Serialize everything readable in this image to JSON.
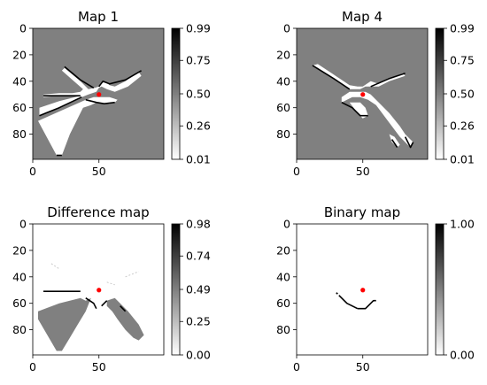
{
  "chart_data": [
    {
      "type": "heatmap",
      "title": "Map 1",
      "xlim": [
        0,
        99
      ],
      "ylim": [
        0,
        99
      ],
      "y_inverted": true,
      "xticks": [
        0,
        50
      ],
      "yticks": [
        0,
        20,
        40,
        60,
        80
      ],
      "colormap": "greys",
      "colorbar": {
        "ticks": [
          "0.99",
          "0.75",
          "0.50",
          "0.26",
          "0.01"
        ],
        "min": 0.01,
        "max": 0.99
      },
      "background_value": 0.5,
      "marker": {
        "x": 50,
        "y": 50,
        "color": "#ff0000"
      },
      "free_regions": [
        [
          [
            5,
            66
          ],
          [
            20,
            60
          ],
          [
            37,
            52
          ],
          [
            42,
            50
          ],
          [
            48,
            48
          ],
          [
            50,
            45
          ],
          [
            52,
            44
          ],
          [
            56,
            46
          ],
          [
            62,
            48
          ],
          [
            72,
            44
          ],
          [
            82,
            36
          ],
          [
            80,
            33
          ],
          [
            70,
            40
          ],
          [
            62,
            44
          ],
          [
            58,
            43
          ],
          [
            56,
            41
          ],
          [
            53,
            41
          ],
          [
            50,
            44
          ],
          [
            47,
            45
          ],
          [
            42,
            46
          ],
          [
            36,
            40
          ],
          [
            24,
            30
          ],
          [
            22,
            32
          ],
          [
            30,
            39
          ],
          [
            38,
            46
          ],
          [
            36,
            48
          ],
          [
            30,
            49
          ],
          [
            20,
            49
          ],
          [
            8,
            50
          ],
          [
            8,
            52
          ],
          [
            20,
            51
          ],
          [
            30,
            51
          ],
          [
            36,
            51
          ],
          [
            20,
            55
          ],
          [
            5,
            60
          ]
        ],
        [
          [
            4,
            70
          ],
          [
            18,
            96
          ],
          [
            22,
            96
          ],
          [
            28,
            80
          ],
          [
            34,
            68
          ],
          [
            38,
            60
          ],
          [
            44,
            58
          ],
          [
            48,
            56
          ],
          [
            54,
            57
          ],
          [
            58,
            57
          ],
          [
            62,
            56
          ],
          [
            64,
            54
          ],
          [
            58,
            52
          ],
          [
            52,
            52
          ],
          [
            46,
            52
          ],
          [
            40,
            54
          ]
        ]
      ],
      "occupied_lines": [
        [
          [
            24,
            29
          ],
          [
            36,
            39
          ],
          [
            46,
            45
          ]
        ],
        [
          [
            50,
            44
          ],
          [
            53,
            40
          ],
          [
            58,
            42
          ],
          [
            70,
            39
          ],
          [
            82,
            32
          ]
        ],
        [
          [
            8,
            51
          ],
          [
            36,
            51
          ]
        ],
        [
          [
            40,
            54
          ],
          [
            48,
            56
          ],
          [
            54,
            57
          ],
          [
            62,
            56
          ]
        ],
        [
          [
            5,
            66
          ],
          [
            20,
            60
          ],
          [
            37,
            52
          ]
        ],
        [
          [
            18,
            96
          ],
          [
            22,
            96
          ]
        ]
      ]
    },
    {
      "type": "heatmap",
      "title": "Map 4",
      "xlim": [
        0,
        99
      ],
      "ylim": [
        0,
        99
      ],
      "y_inverted": true,
      "xticks": [
        0,
        50
      ],
      "yticks": [
        0,
        20,
        40,
        60,
        80
      ],
      "colormap": "greys",
      "colorbar": {
        "ticks": [
          "0.99",
          "0.75",
          "0.50",
          "0.26",
          "0.01"
        ],
        "min": 0.01,
        "max": 0.99
      },
      "background_value": 0.5,
      "marker": {
        "x": 50,
        "y": 50,
        "color": "#ff0000"
      },
      "free_regions": [
        [
          [
            12,
            28
          ],
          [
            16,
            30
          ],
          [
            28,
            38
          ],
          [
            40,
            46
          ],
          [
            48,
            46
          ],
          [
            52,
            44
          ],
          [
            56,
            44
          ],
          [
            62,
            44
          ],
          [
            70,
            40
          ],
          [
            82,
            36
          ],
          [
            80,
            34
          ],
          [
            70,
            38
          ],
          [
            62,
            42
          ],
          [
            56,
            40
          ],
          [
            50,
            44
          ],
          [
            46,
            44
          ],
          [
            40,
            43
          ],
          [
            28,
            35
          ],
          [
            16,
            27
          ]
        ],
        [
          [
            34,
            56
          ],
          [
            42,
            52
          ],
          [
            48,
            52
          ],
          [
            54,
            54
          ],
          [
            60,
            58
          ],
          [
            66,
            66
          ],
          [
            72,
            74
          ],
          [
            78,
            82
          ],
          [
            84,
            88
          ],
          [
            86,
            90
          ],
          [
            88,
            86
          ],
          [
            82,
            80
          ],
          [
            78,
            74
          ],
          [
            70,
            64
          ],
          [
            62,
            56
          ],
          [
            58,
            52
          ],
          [
            56,
            50
          ],
          [
            52,
            48
          ],
          [
            46,
            48
          ],
          [
            40,
            48
          ],
          [
            34,
            52
          ]
        ],
        [
          [
            40,
            56
          ],
          [
            46,
            64
          ],
          [
            50,
            68
          ],
          [
            54,
            66
          ],
          [
            52,
            60
          ],
          [
            48,
            56
          ]
        ],
        [
          [
            70,
            80
          ],
          [
            72,
            86
          ],
          [
            76,
            90
          ],
          [
            78,
            88
          ],
          [
            74,
            82
          ]
        ]
      ],
      "occupied_lines": [
        [
          [
            12,
            28
          ],
          [
            28,
            38
          ],
          [
            40,
            46
          ]
        ],
        [
          [
            34,
            56
          ],
          [
            42,
            60
          ],
          [
            48,
            66
          ],
          [
            54,
            66
          ]
        ],
        [
          [
            56,
            44
          ],
          [
            70,
            38
          ],
          [
            82,
            34
          ]
        ],
        [
          [
            72,
            84
          ],
          [
            76,
            90
          ]
        ],
        [
          [
            82,
            82
          ],
          [
            86,
            90
          ],
          [
            88,
            86
          ]
        ]
      ]
    },
    {
      "type": "heatmap",
      "title": "Difference map",
      "xlim": [
        0,
        99
      ],
      "ylim": [
        0,
        99
      ],
      "y_inverted": true,
      "xticks": [
        0,
        50
      ],
      "yticks": [
        0,
        20,
        40,
        60,
        80
      ],
      "colormap": "greys",
      "colorbar": {
        "ticks": [
          "0.98",
          "0.74",
          "0.49",
          "0.25",
          "0.00"
        ],
        "min": 0.0,
        "max": 0.98
      },
      "background_value": 0.0,
      "marker": {
        "x": 50,
        "y": 50,
        "color": "#ff0000"
      },
      "grey_regions": [
        [
          [
            4,
            66
          ],
          [
            20,
            60
          ],
          [
            36,
            56
          ],
          [
            40,
            58
          ],
          [
            44,
            56
          ],
          [
            40,
            66
          ],
          [
            34,
            76
          ],
          [
            28,
            86
          ],
          [
            22,
            96
          ],
          [
            18,
            96
          ],
          [
            4,
            72
          ]
        ],
        [
          [
            56,
            58
          ],
          [
            62,
            56
          ],
          [
            66,
            60
          ],
          [
            72,
            66
          ],
          [
            80,
            76
          ],
          [
            84,
            84
          ],
          [
            80,
            88
          ],
          [
            76,
            86
          ],
          [
            70,
            80
          ],
          [
            64,
            72
          ],
          [
            60,
            66
          ],
          [
            56,
            62
          ]
        ]
      ],
      "occupied_lines": [
        [
          [
            8,
            51
          ],
          [
            36,
            51
          ]
        ],
        [
          [
            40,
            56
          ],
          [
            46,
            60
          ],
          [
            48,
            64
          ]
        ],
        [
          [
            52,
            62
          ],
          [
            56,
            58
          ]
        ],
        [
          [
            66,
            62
          ],
          [
            70,
            66
          ]
        ]
      ],
      "light_lines": [
        [
          [
            14,
            30
          ],
          [
            20,
            34
          ]
        ],
        [
          [
            70,
            40
          ],
          [
            80,
            36
          ]
        ],
        [
          [
            56,
            44
          ],
          [
            62,
            46
          ]
        ]
      ]
    },
    {
      "type": "heatmap",
      "title": "Binary map",
      "xlim": [
        0,
        99
      ],
      "ylim": [
        0,
        99
      ],
      "y_inverted": true,
      "xticks": [
        0,
        50
      ],
      "yticks": [
        0,
        20,
        40,
        60,
        80
      ],
      "colormap": "greys",
      "colorbar": {
        "ticks": [
          "1.00",
          "0.00"
        ],
        "min": 0.0,
        "max": 1.0
      },
      "background_value": 0.0,
      "marker": {
        "x": 50,
        "y": 50,
        "color": "#ff0000"
      },
      "occupied_lines": [
        [
          [
            32,
            54
          ],
          [
            34,
            56
          ],
          [
            38,
            60
          ],
          [
            42,
            62
          ],
          [
            46,
            64
          ]
        ],
        [
          [
            46,
            64
          ],
          [
            52,
            64
          ],
          [
            56,
            60
          ],
          [
            58,
            58
          ],
          [
            60,
            58
          ]
        ],
        [
          [
            30,
            52
          ],
          [
            31,
            53
          ]
        ]
      ]
    }
  ]
}
